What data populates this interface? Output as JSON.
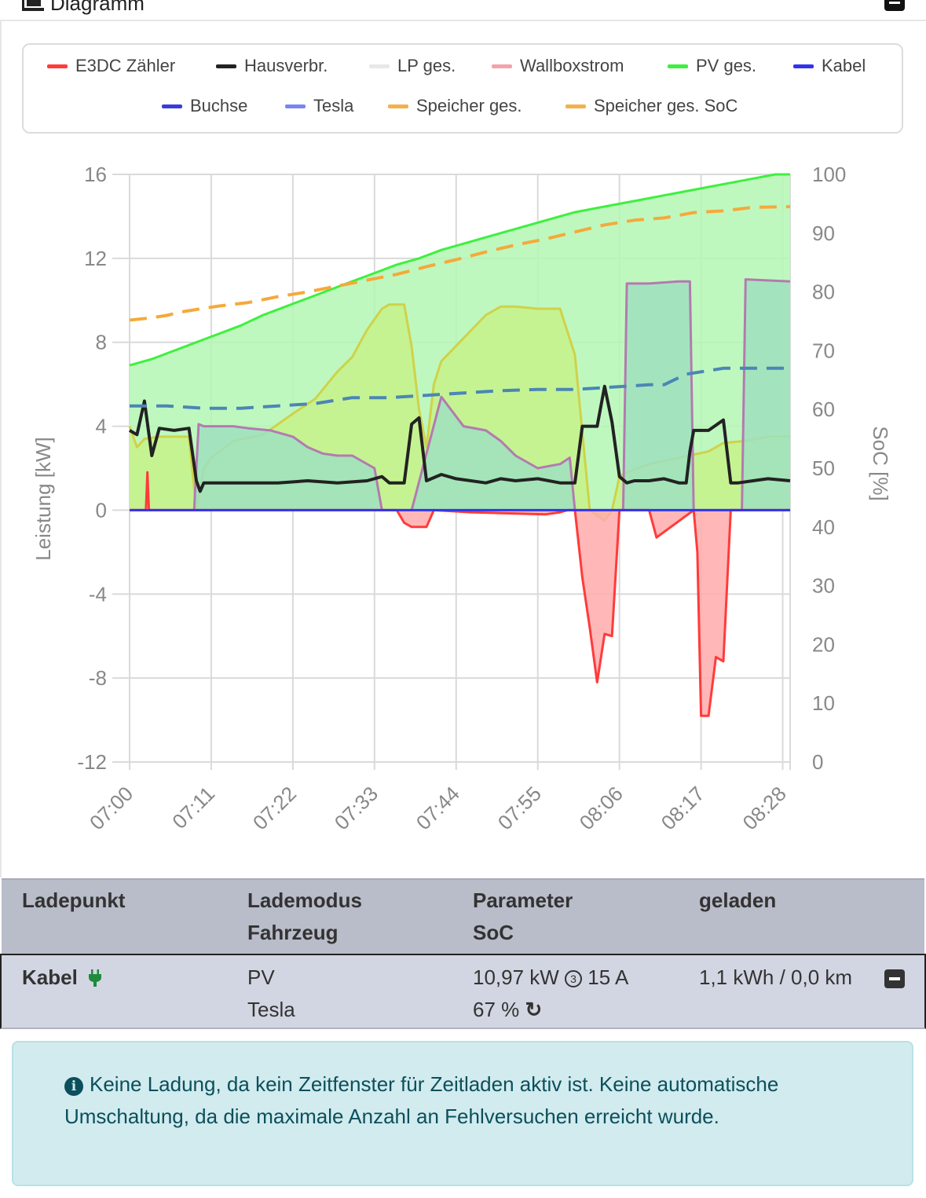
{
  "card": {
    "title": "Diagramm"
  },
  "legend": [
    {
      "label": "E3DC Zähler",
      "color": "#ff3b3b"
    },
    {
      "label": "Hausverbr.",
      "color": "#222222"
    },
    {
      "label": "LP ges.",
      "color": "#e8e8e8"
    },
    {
      "label": "Wallboxstrom",
      "color": "#f4a3a8"
    },
    {
      "label": "PV ges.",
      "color": "#3ef03e"
    },
    {
      "label": "Kabel",
      "color": "#3333ee"
    },
    {
      "label": "Buchse",
      "color": "#3a3adf"
    },
    {
      "label": "Tesla",
      "color": "#7a86f0"
    },
    {
      "label": "Speicher ges.",
      "color": "#f5b04a"
    },
    {
      "label": "Speicher ges. SoC",
      "color": "#f5b04a"
    }
  ],
  "chart_data": {
    "type": "area",
    "ylabel": "Leistung [kW]",
    "y2label": "SoC [%]",
    "ylim": [
      -12,
      16
    ],
    "y2lim": [
      0,
      100
    ],
    "yticks": [
      16,
      12,
      8,
      4,
      0,
      -4,
      -8,
      -12
    ],
    "y2ticks": [
      100,
      90,
      80,
      70,
      60,
      50,
      40,
      30,
      20,
      10,
      0
    ],
    "xticks": [
      "07:00",
      "07:11",
      "07:22",
      "07:33",
      "07:44",
      "07:55",
      "08:06",
      "08:17",
      "08:28"
    ],
    "grid": true,
    "series": [
      {
        "name": "PV ges.",
        "color": "#3ef03e",
        "fill": "#b4f7b4",
        "x": [
          0,
          3,
          6,
          9,
          12,
          15,
          18,
          21,
          24,
          27,
          30,
          33,
          36,
          39,
          42,
          45,
          48,
          51,
          54,
          57,
          60,
          63,
          66,
          69,
          72,
          75,
          78,
          81,
          84,
          87,
          89
        ],
        "y": [
          6.9,
          7.2,
          7.6,
          8.0,
          8.4,
          8.8,
          9.3,
          9.7,
          10.1,
          10.5,
          10.9,
          11.3,
          11.7,
          12.0,
          12.4,
          12.7,
          13.0,
          13.3,
          13.6,
          13.9,
          14.2,
          14.4,
          14.6,
          14.8,
          15.0,
          15.2,
          15.4,
          15.6,
          15.8,
          16.0,
          16.0
        ]
      },
      {
        "name": "LP ges. (Wallbox)",
        "color": "#cfd24a",
        "fill": "#c6f28a",
        "x": [
          0,
          1,
          2,
          4,
          6,
          8,
          9,
          10,
          11,
          14,
          18,
          22,
          25,
          28,
          30,
          32,
          34,
          35,
          37,
          38,
          39,
          40,
          41,
          42,
          45,
          48,
          50,
          52,
          55,
          58,
          60,
          62,
          64,
          65,
          66,
          67,
          70,
          74,
          78,
          80,
          83,
          86,
          89
        ],
        "y": [
          4.0,
          3.0,
          3.4,
          3.5,
          3.5,
          3.5,
          0.0,
          2.0,
          2.5,
          3.3,
          3.6,
          4.6,
          5.3,
          6.6,
          7.3,
          8.6,
          9.6,
          9.8,
          9.8,
          7.8,
          4.8,
          3.0,
          6.0,
          7.1,
          8.2,
          9.3,
          9.7,
          9.7,
          9.6,
          9.6,
          7.4,
          0.0,
          -0.5,
          0.0,
          1.6,
          1.8,
          2.2,
          2.5,
          2.8,
          3.2,
          3.3,
          3.5,
          3.5
        ]
      },
      {
        "name": "Wallboxstrom",
        "color": "#b47ab0",
        "fill": "#9ee0be",
        "x": [
          0,
          8.7,
          9.3,
          10,
          14,
          16,
          19,
          22,
          24,
          26,
          28,
          30,
          33,
          34,
          36,
          38,
          42,
          45,
          48,
          50,
          52,
          55,
          58,
          59.3,
          60,
          64,
          66,
          66.5,
          67,
          70,
          74,
          75.5,
          76,
          80,
          82.5,
          83,
          89
        ],
        "y": [
          0,
          0,
          4.1,
          4.0,
          4.0,
          3.9,
          3.8,
          3.5,
          3.0,
          2.7,
          2.6,
          2.6,
          2.0,
          0.0,
          0.0,
          0.0,
          5.4,
          4.0,
          3.8,
          3.3,
          2.6,
          2.0,
          2.2,
          2.5,
          0.0,
          0.0,
          0.0,
          0.0,
          10.8,
          10.8,
          10.9,
          10.9,
          0.0,
          0.0,
          0.0,
          11.0,
          10.9
        ]
      },
      {
        "name": "E3DC Zähler",
        "color": "#ff3b3b",
        "fill": "#ffaaaa",
        "x": [
          0,
          2.2,
          2.4,
          2.6,
          10,
          36,
          37,
          38,
          40,
          41,
          46,
          56,
          58,
          59,
          60,
          61,
          62,
          63,
          64,
          65,
          66,
          70,
          71,
          76,
          76.5,
          77,
          78,
          79,
          80,
          81,
          82,
          89
        ],
        "y": [
          0.0,
          0.0,
          1.8,
          0.0,
          0.0,
          0.0,
          -0.6,
          -0.8,
          -0.8,
          0.0,
          -0.1,
          -0.2,
          -0.1,
          0.0,
          0.0,
          -3.2,
          -5.6,
          -8.2,
          -5.9,
          -6.0,
          0.0,
          0.0,
          -1.3,
          0.0,
          -2.0,
          -9.8,
          -9.8,
          -7.0,
          -7.2,
          0.0,
          0.0,
          0.0
        ]
      },
      {
        "name": "Hausverbr.",
        "color": "#222222",
        "x": [
          0,
          1,
          2,
          3,
          4,
          6,
          8,
          9,
          9.5,
          10,
          12,
          16,
          20,
          24,
          28,
          32,
          34,
          35,
          36,
          37,
          38,
          39,
          40,
          42,
          44,
          48,
          50,
          52,
          55,
          58,
          60,
          61,
          62,
          63,
          64,
          65,
          66,
          67,
          68,
          70,
          72,
          74,
          75,
          75.5,
          76,
          78,
          80,
          81,
          82,
          84,
          86,
          89
        ],
        "y": [
          3.8,
          3.6,
          5.2,
          2.6,
          3.9,
          3.8,
          3.9,
          1.4,
          0.9,
          1.3,
          1.3,
          1.3,
          1.3,
          1.4,
          1.3,
          1.4,
          1.6,
          1.3,
          1.3,
          1.3,
          4.1,
          4.4,
          1.4,
          1.7,
          1.5,
          1.3,
          1.5,
          1.4,
          1.5,
          1.3,
          1.3,
          4.0,
          4.0,
          4.0,
          5.9,
          4.2,
          1.6,
          1.3,
          1.4,
          1.4,
          1.5,
          1.3,
          1.3,
          2.8,
          3.8,
          3.8,
          4.3,
          1.3,
          1.3,
          1.4,
          1.5,
          1.4
        ]
      },
      {
        "name": "Speicher ges. SoC",
        "color": "#f5a93a",
        "dashed": true,
        "axis": "y2",
        "x": [
          0,
          3,
          5,
          7,
          9,
          12,
          16,
          20,
          24,
          28,
          32,
          36,
          40,
          44,
          48,
          52,
          56,
          60,
          64,
          68,
          72,
          76,
          80,
          84,
          89
        ],
        "y": [
          75.2,
          75.6,
          76.0,
          76.6,
          77.0,
          77.6,
          78.2,
          79.2,
          80.0,
          81.0,
          82.0,
          83.0,
          84.3,
          85.5,
          86.8,
          88.0,
          89.0,
          90.2,
          91.4,
          92.2,
          92.6,
          93.5,
          93.8,
          94.4,
          94.5
        ]
      },
      {
        "name": "Kabel SoC",
        "color": "#4b86b4",
        "dashed": true,
        "axis": "y2",
        "x": [
          0,
          5,
          10,
          15,
          20,
          25,
          30,
          35,
          40,
          45,
          50,
          55,
          60,
          65,
          70,
          72,
          75,
          80,
          85,
          89
        ],
        "y": [
          60.6,
          60.6,
          60.2,
          60.2,
          60.6,
          61.0,
          62.0,
          62.0,
          62.4,
          62.8,
          63.2,
          63.4,
          63.4,
          63.8,
          64.2,
          64.2,
          66.0,
          67.0,
          67.0,
          67.0
        ]
      },
      {
        "name": "Kabel",
        "color": "#3333ee",
        "x": [
          0,
          89
        ],
        "y": [
          0,
          0
        ]
      }
    ]
  },
  "table": {
    "headers": [
      {
        "l1": "Ladepunkt",
        "l2": ""
      },
      {
        "l1": "Lademodus",
        "l2": "Fahrzeug"
      },
      {
        "l1": "Parameter",
        "l2": "SoC"
      },
      {
        "l1": "geladen",
        "l2": ""
      }
    ],
    "row": {
      "name": "Kabel",
      "mode": "PV",
      "vehicle": "Tesla",
      "power": "10,97 kW",
      "phases": "3",
      "current": "15 A",
      "soc": "67 %",
      "charged": "1,1 kWh / 0,0 km"
    }
  },
  "alert": {
    "text": "Keine Ladung, da kein Zeitfenster für Zeitladen aktiv ist. Keine automatische Umschaltung, da die maximale Anzahl an Fehlversuchen erreicht wurde."
  }
}
